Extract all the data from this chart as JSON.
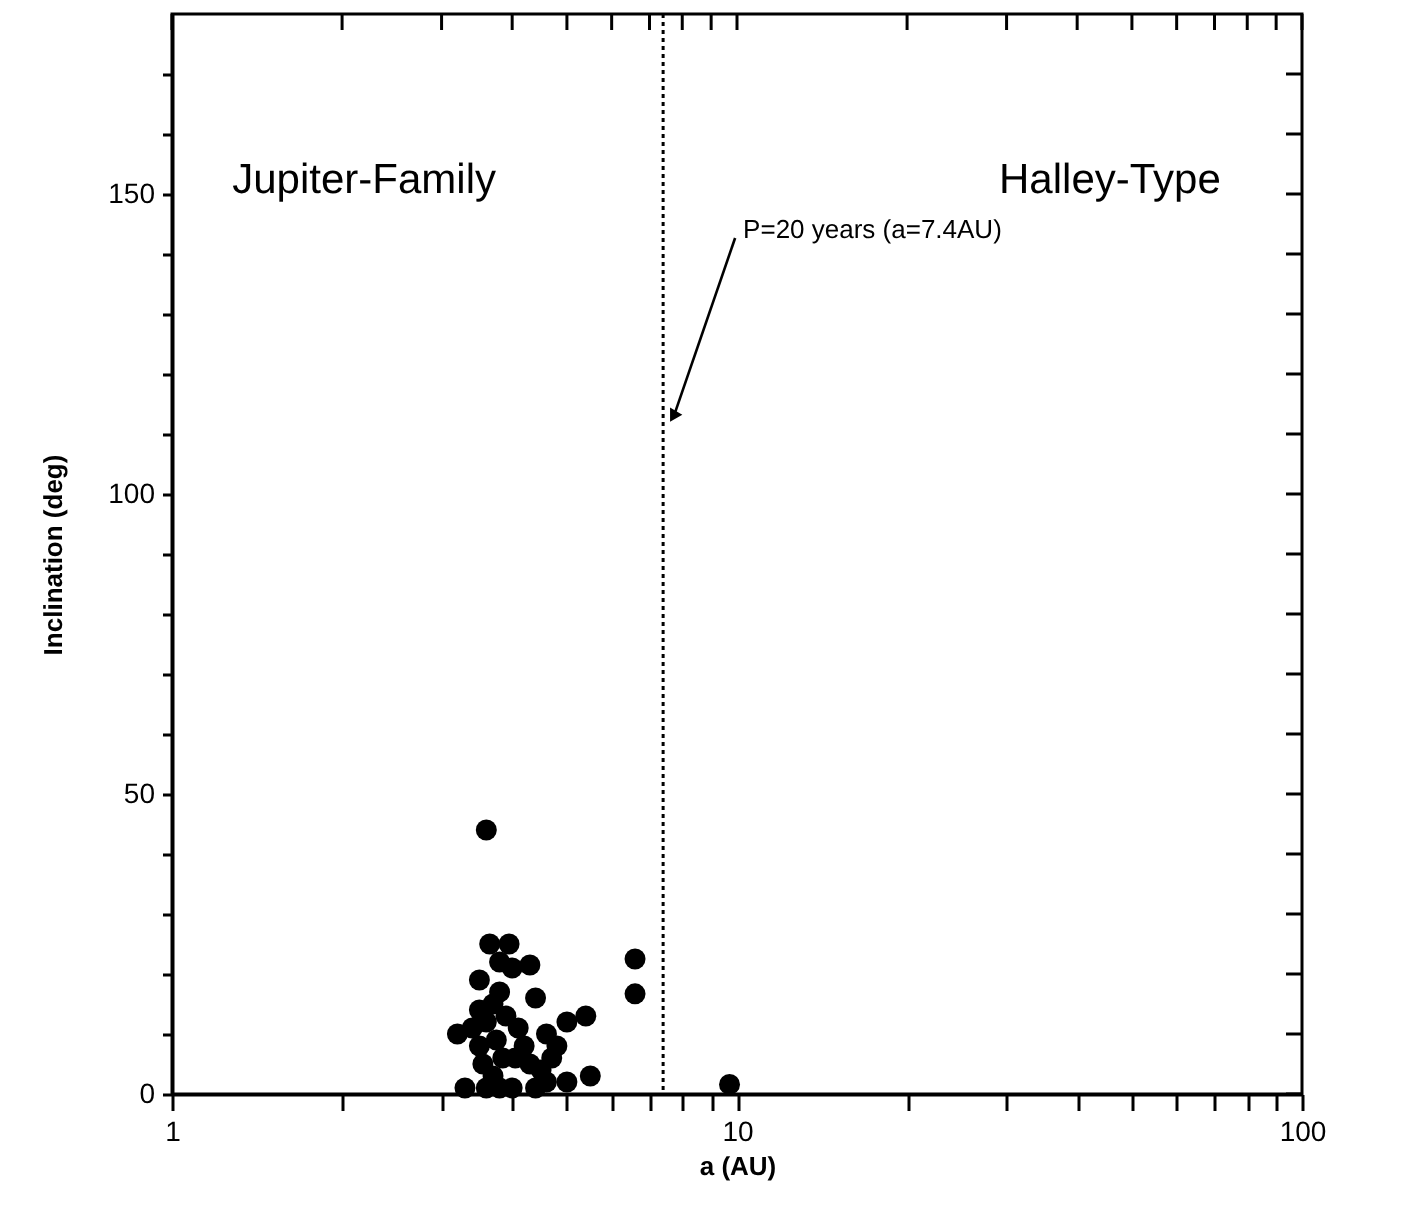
{
  "chart_data": {
    "type": "scatter",
    "xlabel": "a (AU)",
    "ylabel": "Inclination (deg)",
    "log": "x",
    "grid": false,
    "marker": "circle",
    "xlim": [
      1,
      100
    ],
    "xticks": [
      1,
      {
        "value": 2,
        "label": null
      },
      {
        "value": 3,
        "label": null
      },
      {
        "value": 4,
        "label": null
      },
      {
        "value": 5,
        "label": null
      },
      {
        "value": 6,
        "label": null
      },
      {
        "value": 7,
        "label": null
      },
      {
        "value": 8,
        "label": null
      },
      {
        "value": 9,
        "label": null
      },
      10,
      {
        "value": 20,
        "label": null
      },
      {
        "value": 30,
        "label": null
      },
      {
        "value": 40,
        "label": null
      },
      {
        "value": 50,
        "label": null
      },
      {
        "value": 60,
        "label": null
      },
      {
        "value": 70,
        "label": null
      },
      {
        "value": 80,
        "label": null
      },
      {
        "value": 90,
        "label": null
      },
      100
    ],
    "ylim": [
      0,
      180
    ],
    "yticks": [
      0,
      {
        "value": 10,
        "label": null
      },
      {
        "value": 20,
        "label": null
      },
      {
        "value": 30,
        "label": null
      },
      {
        "value": 40,
        "label": null
      },
      50,
      {
        "value": 60,
        "label": null
      },
      {
        "value": 70,
        "label": null
      },
      {
        "value": 80,
        "label": null
      },
      {
        "value": 90,
        "label": null
      },
      100,
      {
        "value": 110,
        "label": null
      },
      {
        "value": 120,
        "label": null
      },
      {
        "value": 130,
        "label": null
      },
      {
        "value": 140,
        "label": null
      },
      150,
      {
        "value": 160,
        "label": null
      },
      {
        "value": 170,
        "label": null
      }
    ],
    "series": [
      {
        "color": "#000000",
        "x": [
          3.6,
          3.65,
          3.95,
          3.5,
          4.0,
          4.3,
          4.4,
          5.4,
          5.0,
          3.2,
          3.4,
          3.6,
          3.7,
          3.8,
          3.9,
          4.1,
          4.2,
          3.5,
          3.55,
          3.75,
          3.85,
          4.05,
          4.3,
          4.5,
          4.7,
          3.6,
          3.7,
          3.8,
          4.0,
          4.4,
          4.6,
          5.5,
          5.0,
          3.3,
          3.5,
          3.8,
          4.6,
          4.8,
          6.6,
          6.6,
          9.7
        ],
        "values": [
          44,
          25,
          25,
          19,
          21,
          21.5,
          16,
          13,
          12,
          10,
          11,
          12,
          15,
          17,
          13,
          11,
          8,
          8,
          5,
          9,
          6,
          6,
          5,
          4,
          6,
          1,
          3,
          1,
          1,
          1,
          2,
          3,
          2,
          1,
          14,
          22,
          10,
          8,
          22.5,
          16.7,
          1.6
        ]
      }
    ],
    "ref_lines": [
      {
        "axis": "x",
        "value": 7.4,
        "label": "P=20 years (a=7.4AU)",
        "line_style": "dotted",
        "color": "#000000"
      }
    ],
    "annotations": [
      "Jupiter-Family",
      "Halley-Type"
    ]
  }
}
